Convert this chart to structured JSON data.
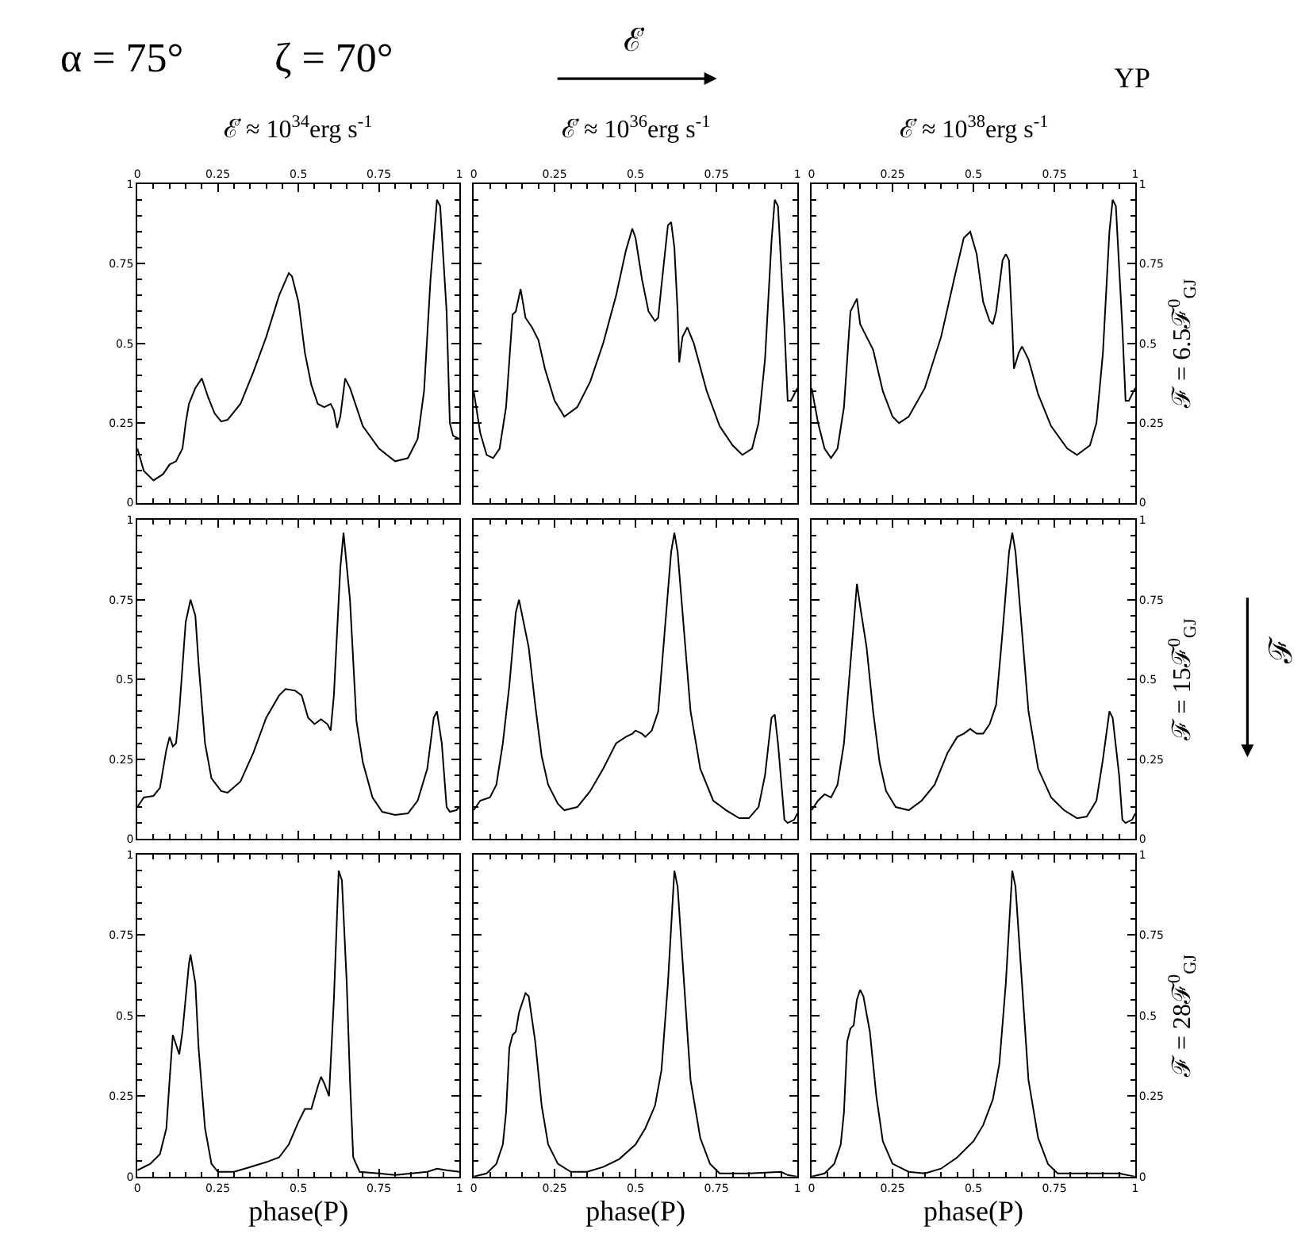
{
  "chart_data": [
    {
      "type": "line",
      "title": "ℰ̇ ≈ 10$^{34}$erg s$^{-1}$",
      "annotations": [
        "α = 75°",
        "ζ = 70°",
        "ℰ̇",
        "YP",
        "ℱ"
      ],
      "xlim": [
        0,
        1
      ],
      "xticks": [
        0,
        0.25,
        0.5,
        0.75,
        1
      ],
      "ylim": [
        0,
        1
      ],
      "yticks": [
        0,
        0.25,
        0.5,
        0.75,
        1
      ],
      "grid": false,
      "legend": false,
      "series": [
        {
          "color": "#000000",
          "x": [
            0,
            0.02,
            0.05,
            0.08,
            0.1,
            0.12,
            0.14,
            0.15,
            0.16,
            0.18,
            0.2,
            0.22,
            0.24,
            0.26,
            0.28,
            0.32,
            0.36,
            0.4,
            0.44,
            0.47,
            0.48,
            0.5,
            0.52,
            0.54,
            0.56,
            0.58,
            0.6,
            0.61,
            0.62,
            0.63,
            0.645,
            0.66,
            0.7,
            0.75,
            0.8,
            0.84,
            0.87,
            0.89,
            0.91,
            0.93,
            0.94,
            0.96,
            0.97,
            0.98,
            1
          ],
          "values": [
            0.17,
            0.1,
            0.07,
            0.09,
            0.12,
            0.13,
            0.17,
            0.25,
            0.31,
            0.36,
            0.39,
            0.33,
            0.28,
            0.255,
            0.26,
            0.31,
            0.41,
            0.52,
            0.65,
            0.72,
            0.71,
            0.63,
            0.47,
            0.37,
            0.31,
            0.3,
            0.31,
            0.29,
            0.235,
            0.27,
            0.39,
            0.36,
            0.24,
            0.17,
            0.13,
            0.14,
            0.2,
            0.35,
            0.7,
            0.95,
            0.93,
            0.6,
            0.25,
            0.21,
            0.2
          ]
        }
      ]
    },
    {
      "type": "line",
      "title": "ℰ̇ ≈ 10$^{36}$erg s$^{-1}$",
      "xlim": [
        0,
        1
      ],
      "xticks": [
        0,
        0.25,
        0.5,
        0.75,
        1
      ],
      "ylim": [
        0,
        1
      ],
      "yticks": [
        0,
        0.25,
        0.5,
        0.75,
        1
      ],
      "grid": false,
      "legend": false,
      "tick_labels": "x",
      "series": [
        {
          "color": "#000000",
          "x": [
            0,
            0.02,
            0.04,
            0.06,
            0.08,
            0.1,
            0.12,
            0.13,
            0.145,
            0.16,
            0.18,
            0.2,
            0.22,
            0.25,
            0.28,
            0.32,
            0.36,
            0.4,
            0.44,
            0.47,
            0.49,
            0.5,
            0.52,
            0.54,
            0.56,
            0.57,
            0.58,
            0.6,
            0.61,
            0.62,
            0.63,
            0.635,
            0.645,
            0.66,
            0.68,
            0.72,
            0.76,
            0.8,
            0.83,
            0.86,
            0.88,
            0.9,
            0.92,
            0.93,
            0.94,
            0.96,
            0.97,
            0.98,
            1
          ],
          "values": [
            0.35,
            0.22,
            0.15,
            0.14,
            0.17,
            0.3,
            0.59,
            0.6,
            0.67,
            0.58,
            0.55,
            0.51,
            0.42,
            0.32,
            0.27,
            0.3,
            0.38,
            0.5,
            0.65,
            0.79,
            0.86,
            0.83,
            0.7,
            0.6,
            0.57,
            0.58,
            0.68,
            0.87,
            0.88,
            0.8,
            0.6,
            0.44,
            0.52,
            0.55,
            0.5,
            0.35,
            0.24,
            0.18,
            0.15,
            0.17,
            0.25,
            0.45,
            0.82,
            0.95,
            0.93,
            0.55,
            0.32,
            0.32,
            0.36
          ]
        }
      ]
    },
    {
      "type": "line",
      "title": "ℰ̇ ≈ 10$^{38}$erg s$^{-1}$",
      "ylabel": "ℱ = 6.5ℱ$^{0}$$_{GJ}$",
      "xlim": [
        0,
        1
      ],
      "xticks": [
        0,
        0.25,
        0.5,
        0.75,
        1
      ],
      "ylim": [
        0,
        1
      ],
      "yticks": [
        0,
        0.25,
        0.5,
        0.75,
        1
      ],
      "grid": false,
      "legend": false,
      "series": [
        {
          "color": "#000000",
          "x": [
            0,
            0.02,
            0.04,
            0.06,
            0.08,
            0.1,
            0.12,
            0.14,
            0.15,
            0.17,
            0.19,
            0.22,
            0.25,
            0.27,
            0.3,
            0.35,
            0.4,
            0.44,
            0.47,
            0.49,
            0.51,
            0.53,
            0.55,
            0.56,
            0.57,
            0.59,
            0.6,
            0.61,
            0.62,
            0.625,
            0.64,
            0.65,
            0.67,
            0.7,
            0.74,
            0.79,
            0.82,
            0.86,
            0.88,
            0.9,
            0.92,
            0.93,
            0.94,
            0.96,
            0.97,
            0.98,
            1
          ],
          "values": [
            0.36,
            0.25,
            0.17,
            0.14,
            0.17,
            0.3,
            0.6,
            0.64,
            0.56,
            0.52,
            0.48,
            0.35,
            0.27,
            0.25,
            0.27,
            0.36,
            0.52,
            0.7,
            0.83,
            0.85,
            0.78,
            0.63,
            0.57,
            0.56,
            0.6,
            0.76,
            0.78,
            0.76,
            0.55,
            0.42,
            0.47,
            0.49,
            0.45,
            0.34,
            0.24,
            0.17,
            0.15,
            0.18,
            0.25,
            0.47,
            0.85,
            0.95,
            0.93,
            0.55,
            0.32,
            0.32,
            0.36
          ]
        }
      ]
    },
    {
      "type": "line",
      "xlim": [
        0,
        1
      ],
      "xticks": [
        0,
        0.25,
        0.5,
        0.75,
        1
      ],
      "ylim": [
        0,
        1
      ],
      "yticks": [
        0,
        0.25,
        0.5,
        0.75,
        1
      ],
      "grid": false,
      "legend": false,
      "tick_labels": "y",
      "series": [
        {
          "color": "#000000",
          "x": [
            0,
            0.02,
            0.05,
            0.07,
            0.09,
            0.1,
            0.11,
            0.12,
            0.13,
            0.15,
            0.165,
            0.18,
            0.19,
            0.21,
            0.23,
            0.26,
            0.28,
            0.32,
            0.36,
            0.4,
            0.44,
            0.46,
            0.49,
            0.51,
            0.53,
            0.55,
            0.57,
            0.59,
            0.6,
            0.61,
            0.63,
            0.64,
            0.66,
            0.68,
            0.7,
            0.73,
            0.76,
            0.8,
            0.84,
            0.87,
            0.9,
            0.92,
            0.93,
            0.945,
            0.96,
            0.97,
            0.99,
            1
          ],
          "values": [
            0.1,
            0.13,
            0.135,
            0.16,
            0.28,
            0.32,
            0.29,
            0.3,
            0.4,
            0.68,
            0.75,
            0.7,
            0.55,
            0.3,
            0.19,
            0.15,
            0.145,
            0.18,
            0.27,
            0.38,
            0.45,
            0.47,
            0.465,
            0.45,
            0.38,
            0.36,
            0.375,
            0.36,
            0.34,
            0.45,
            0.85,
            0.96,
            0.75,
            0.37,
            0.24,
            0.13,
            0.085,
            0.075,
            0.08,
            0.12,
            0.22,
            0.38,
            0.4,
            0.3,
            0.1,
            0.085,
            0.09,
            0.1
          ]
        }
      ]
    },
    {
      "type": "line",
      "xlim": [
        0,
        1
      ],
      "xticks": [
        0,
        0.25,
        0.5,
        0.75,
        1
      ],
      "ylim": [
        0,
        1
      ],
      "yticks": [
        0,
        0.25,
        0.5,
        0.75,
        1
      ],
      "grid": false,
      "legend": false,
      "tick_labels": false,
      "series": [
        {
          "color": "#000000",
          "x": [
            0,
            0.02,
            0.05,
            0.07,
            0.09,
            0.11,
            0.13,
            0.14,
            0.15,
            0.17,
            0.19,
            0.21,
            0.23,
            0.26,
            0.28,
            0.32,
            0.36,
            0.4,
            0.44,
            0.47,
            0.49,
            0.5,
            0.52,
            0.53,
            0.55,
            0.57,
            0.59,
            0.61,
            0.62,
            0.63,
            0.65,
            0.67,
            0.7,
            0.74,
            0.78,
            0.82,
            0.85,
            0.88,
            0.9,
            0.92,
            0.93,
            0.94,
            0.96,
            0.97,
            0.99,
            1
          ],
          "values": [
            0.09,
            0.12,
            0.13,
            0.17,
            0.3,
            0.48,
            0.71,
            0.75,
            0.7,
            0.6,
            0.42,
            0.26,
            0.17,
            0.11,
            0.09,
            0.1,
            0.15,
            0.22,
            0.3,
            0.32,
            0.33,
            0.34,
            0.33,
            0.32,
            0.34,
            0.4,
            0.65,
            0.9,
            0.96,
            0.9,
            0.65,
            0.4,
            0.22,
            0.12,
            0.09,
            0.065,
            0.065,
            0.1,
            0.2,
            0.38,
            0.39,
            0.3,
            0.06,
            0.05,
            0.06,
            0.08
          ]
        }
      ]
    },
    {
      "type": "line",
      "ylabel": "ℱ = 15ℱ$^{0}$$_{GJ}$",
      "xlim": [
        0,
        1
      ],
      "xticks": [
        0,
        0.25,
        0.5,
        0.75,
        1
      ],
      "ylim": [
        0,
        1
      ],
      "yticks": [
        0,
        0.25,
        0.5,
        0.75,
        1
      ],
      "grid": false,
      "legend": false,
      "tick_labels": "y",
      "series": [
        {
          "color": "#000000",
          "x": [
            0,
            0.02,
            0.04,
            0.06,
            0.08,
            0.1,
            0.12,
            0.14,
            0.15,
            0.17,
            0.19,
            0.21,
            0.23,
            0.26,
            0.3,
            0.34,
            0.38,
            0.42,
            0.45,
            0.47,
            0.49,
            0.51,
            0.53,
            0.55,
            0.57,
            0.59,
            0.61,
            0.62,
            0.63,
            0.65,
            0.67,
            0.7,
            0.74,
            0.78,
            0.82,
            0.85,
            0.88,
            0.9,
            0.92,
            0.93,
            0.95,
            0.96,
            0.97,
            0.99,
            1
          ],
          "values": [
            0.09,
            0.12,
            0.14,
            0.13,
            0.17,
            0.3,
            0.55,
            0.8,
            0.73,
            0.6,
            0.4,
            0.24,
            0.15,
            0.1,
            0.09,
            0.12,
            0.17,
            0.27,
            0.32,
            0.33,
            0.345,
            0.33,
            0.33,
            0.36,
            0.42,
            0.65,
            0.9,
            0.96,
            0.9,
            0.65,
            0.4,
            0.22,
            0.13,
            0.09,
            0.065,
            0.07,
            0.12,
            0.25,
            0.4,
            0.38,
            0.2,
            0.06,
            0.05,
            0.06,
            0.08
          ]
        }
      ]
    },
    {
      "type": "line",
      "xlabel": "phase(P)",
      "xlim": [
        0,
        1
      ],
      "xticks": [
        0,
        0.25,
        0.5,
        0.75,
        1
      ],
      "ylim": [
        0,
        1
      ],
      "yticks": [
        0,
        0.25,
        0.5,
        0.75,
        1
      ],
      "grid": false,
      "legend": false,
      "series": [
        {
          "color": "#000000",
          "x": [
            0,
            0.04,
            0.07,
            0.09,
            0.1,
            0.11,
            0.12,
            0.13,
            0.14,
            0.16,
            0.165,
            0.18,
            0.19,
            0.21,
            0.23,
            0.25,
            0.3,
            0.35,
            0.4,
            0.44,
            0.47,
            0.5,
            0.52,
            0.54,
            0.56,
            0.57,
            0.58,
            0.595,
            0.61,
            0.625,
            0.635,
            0.65,
            0.66,
            0.67,
            0.69,
            0.75,
            0.8,
            0.85,
            0.9,
            0.93,
            0.96,
            1
          ],
          "values": [
            0.02,
            0.04,
            0.07,
            0.15,
            0.3,
            0.44,
            0.41,
            0.38,
            0.45,
            0.66,
            0.69,
            0.6,
            0.4,
            0.15,
            0.04,
            0.015,
            0.015,
            0.03,
            0.045,
            0.06,
            0.1,
            0.17,
            0.21,
            0.21,
            0.28,
            0.31,
            0.29,
            0.25,
            0.55,
            0.95,
            0.92,
            0.6,
            0.3,
            0.06,
            0.015,
            0.01,
            0.005,
            0.01,
            0.015,
            0.025,
            0.02,
            0.015
          ]
        }
      ]
    },
    {
      "type": "line",
      "xlabel": "phase(P)",
      "xlim": [
        0,
        1
      ],
      "xticks": [
        0,
        0.25,
        0.5,
        0.75,
        1
      ],
      "ylim": [
        0,
        1
      ],
      "yticks": [
        0,
        0.25,
        0.5,
        0.75,
        1
      ],
      "grid": false,
      "legend": false,
      "tick_labels": "x",
      "series": [
        {
          "color": "#000000",
          "x": [
            0,
            0.04,
            0.07,
            0.09,
            0.1,
            0.11,
            0.12,
            0.13,
            0.14,
            0.16,
            0.17,
            0.19,
            0.21,
            0.23,
            0.26,
            0.3,
            0.35,
            0.4,
            0.45,
            0.5,
            0.53,
            0.56,
            0.58,
            0.6,
            0.62,
            0.63,
            0.65,
            0.67,
            0.7,
            0.73,
            0.76,
            0.85,
            0.95,
            0.97,
            1
          ],
          "values": [
            0.0,
            0.01,
            0.04,
            0.1,
            0.2,
            0.4,
            0.44,
            0.45,
            0.51,
            0.57,
            0.56,
            0.42,
            0.22,
            0.1,
            0.04,
            0.015,
            0.015,
            0.03,
            0.055,
            0.1,
            0.15,
            0.22,
            0.33,
            0.6,
            0.95,
            0.9,
            0.6,
            0.3,
            0.12,
            0.04,
            0.01,
            0.01,
            0.015,
            0.005,
            0.0
          ]
        }
      ]
    },
    {
      "type": "line",
      "xlabel": "phase(P)",
      "ylabel": "ℱ = 28ℱ$^{0}$$_{GJ}$",
      "xlim": [
        0,
        1
      ],
      "xticks": [
        0,
        0.25,
        0.5,
        0.75,
        1
      ],
      "ylim": [
        0,
        1
      ],
      "yticks": [
        0,
        0.25,
        0.5,
        0.75,
        1
      ],
      "grid": false,
      "legend": false,
      "series": [
        {
          "color": "#000000",
          "x": [
            0,
            0.04,
            0.07,
            0.09,
            0.1,
            0.11,
            0.12,
            0.13,
            0.14,
            0.15,
            0.16,
            0.18,
            0.2,
            0.22,
            0.25,
            0.3,
            0.35,
            0.4,
            0.45,
            0.5,
            0.53,
            0.56,
            0.58,
            0.6,
            0.62,
            0.63,
            0.65,
            0.67,
            0.7,
            0.73,
            0.76,
            0.85,
            0.95,
            1
          ],
          "values": [
            0.0,
            0.01,
            0.04,
            0.1,
            0.2,
            0.42,
            0.46,
            0.47,
            0.55,
            0.58,
            0.56,
            0.45,
            0.25,
            0.11,
            0.04,
            0.015,
            0.01,
            0.025,
            0.06,
            0.11,
            0.16,
            0.24,
            0.35,
            0.6,
            0.95,
            0.9,
            0.6,
            0.3,
            0.12,
            0.04,
            0.01,
            0.01,
            0.01,
            0.0
          ]
        }
      ]
    }
  ]
}
